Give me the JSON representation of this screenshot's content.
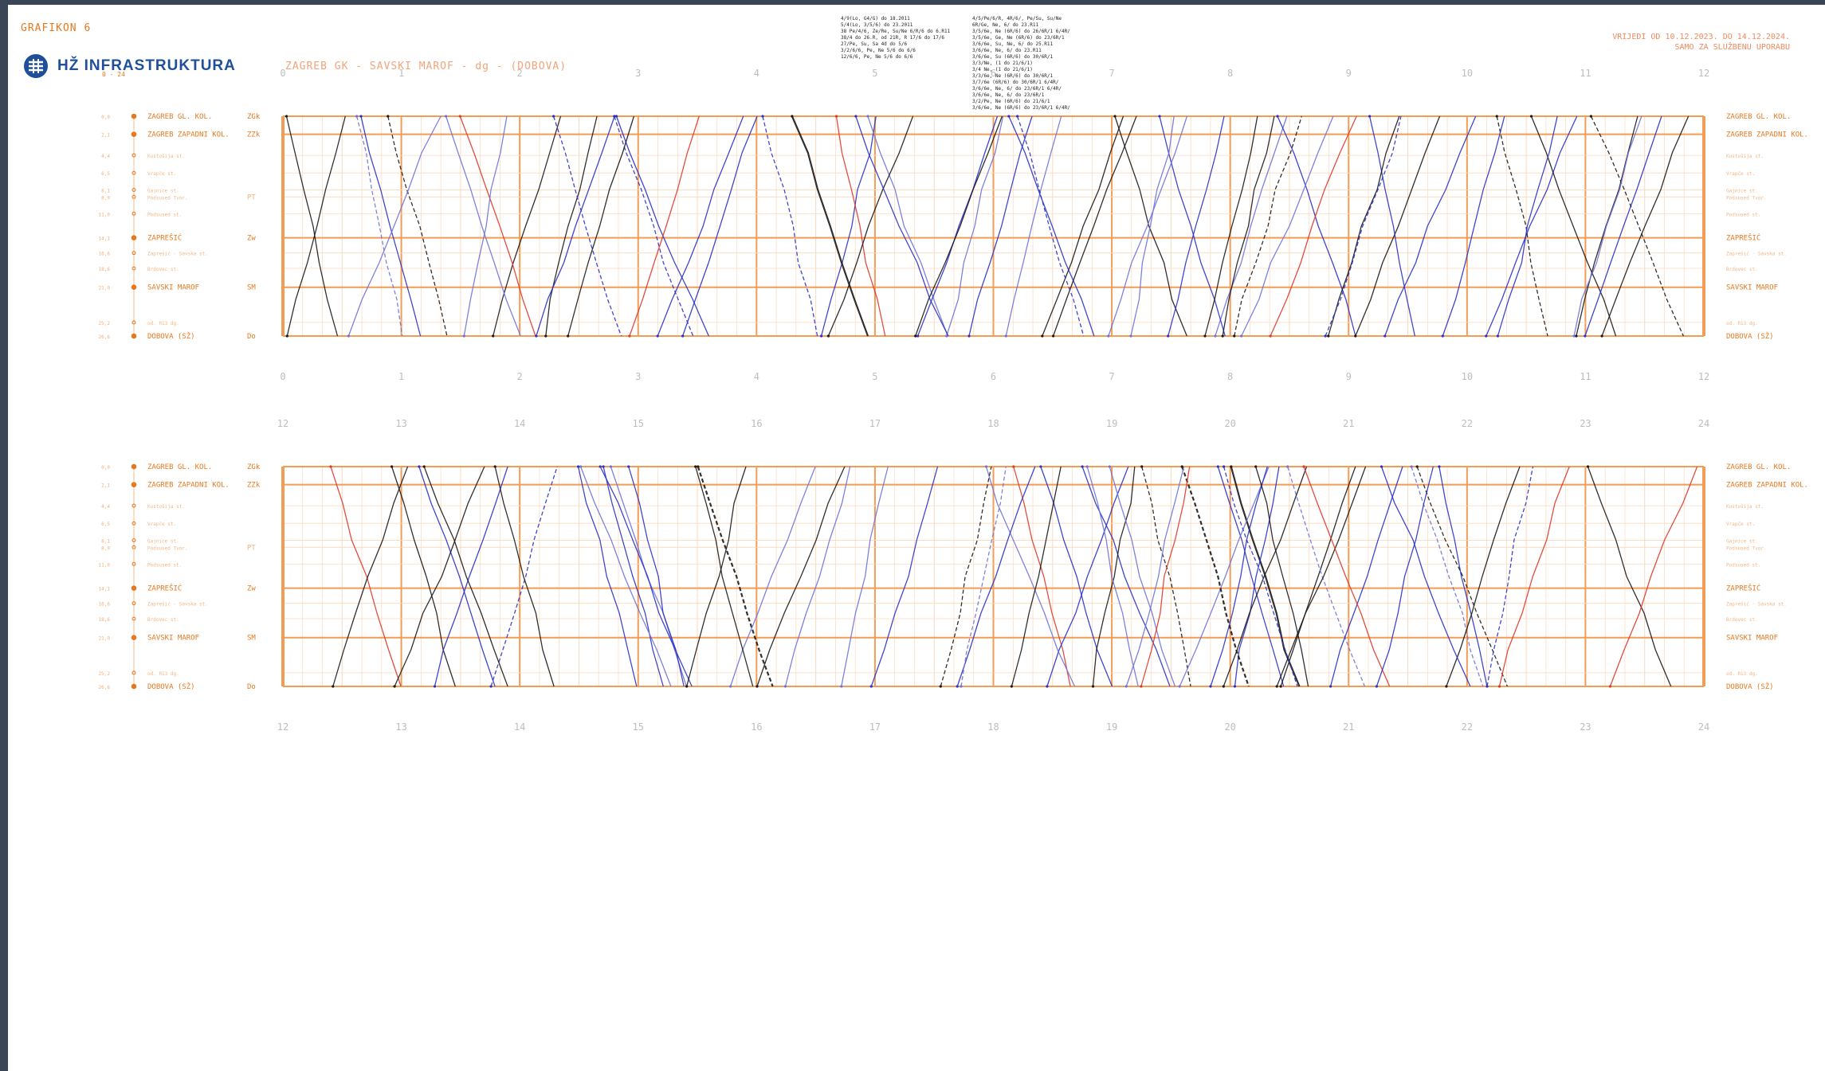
{
  "header": {
    "grafikon": "GRAFIKON 6",
    "operator": "HŽ INFRASTRUKTURA",
    "route": "ZAGREB GK - SAVSKI MAROF - dg - (DOBOVA)",
    "validity_line1": "VRIJEDI OD 10.12.2023. DO 14.12.2024.",
    "validity_line2": "SAMO ZA SLUŽBENU UPORABU"
  },
  "notes_a": [
    "4/9(Lo, G4/G) do 18.2011",
    "5/4(Lo, 3/5/6) do 23.2011",
    "38 Pe/4/6, Ze/Re, Su/Ne 6/R/6 do 6.R11",
    "38/4 do 26.R, od 21R, R 17/6 do 17/6",
    "27/Pe, Su, Sa 4d do 5/6",
    "3/2/6/6, Pe, Ne 5/6 do 6/6",
    "12/6/6, Pe, Ne 5/6 do 6/6"
  ],
  "notes_b": [
    "4/5/Pe/6/R, 4R/6/, Pe/Su, Su/Ne",
    "6R/Ge, Ne, 6/ do 23.R11",
    "3/5/6e, Ne (6R/6) do 26/6R/1 6/4R/",
    "3/5/6e, Ge, Ne (6R/6) do 23/6R/1",
    "3/6/6e, Su, Ne, 6/ do 25.R11",
    "3/6/6e, Ne, 6/ do 23.R11",
    "3/6/6e, Su (6R/6) do 30/6R/1",
    "3/3/Ne, (1 do 21/6/1)",
    "3/4 Ne, (1 do 21/6/1)",
    "3/3/6e, Ne (6R/6) do 30/6R/1",
    "3/7/6e (6R/6) do 30/6R/1 6/4R/",
    "3/6/6e, Ne, 6/ do 23/6R/1 6/4R/",
    "3/6/6e, Ne, 6/ do 23/6R/1",
    "3/2/Pe, Ne (6R/6) do 21/6/1",
    "3/6/6e, Ne (6R/6) do 23/6R/1 6/4R/"
  ],
  "hours": {
    "top": [
      "0",
      "1",
      "2",
      "3",
      "4",
      "5",
      "6",
      "7",
      "8",
      "9",
      "10",
      "11",
      "12"
    ],
    "bottom": [
      "12",
      "13",
      "14",
      "15",
      "16",
      "17",
      "18",
      "19",
      "20",
      "21",
      "22",
      "23",
      "24"
    ]
  },
  "range_label": "0 - 24",
  "stations": [
    {
      "km": "0,0",
      "name": "ZAGREB GL. KOL.",
      "abbr": "ZGk",
      "major": true
    },
    {
      "km": "2,1",
      "name": "ZAGREB ZAPADNI KOL.",
      "abbr": "ZZk",
      "major": true
    },
    {
      "km": "4,4",
      "name": "Kustošija st.",
      "abbr": "",
      "major": false
    },
    {
      "km": "6,5",
      "name": "Vrapče st.",
      "abbr": "",
      "major": false
    },
    {
      "km": "8,1",
      "name": "Gajnice st.",
      "abbr": "",
      "major": false
    },
    {
      "km": "8,9",
      "name": "Podsused Tvor.",
      "abbr": "PT",
      "major": false
    },
    {
      "km": "11,0",
      "name": "Podsused st.",
      "abbr": "",
      "major": false
    },
    {
      "km": "14,1",
      "name": "ZAPREŠIĆ",
      "abbr": "Zw",
      "major": true
    },
    {
      "km": "16,6",
      "name": "Zaprešić - Savska st.",
      "abbr": "",
      "major": false
    },
    {
      "km": "18,6",
      "name": "Brdovec st.",
      "abbr": "",
      "major": false
    },
    {
      "km": "21,0",
      "name": "SAVSKI MAROF",
      "abbr": "SM",
      "major": true
    },
    {
      "km": "25,2",
      "name": "od. R13 dg.",
      "abbr": "",
      "major": false
    },
    {
      "km": "26,6",
      "name": "DOBOVA (SŽ)",
      "abbr": "Do",
      "major": true
    }
  ],
  "colors": {
    "grid": "#f39c55",
    "grid_minor": "#fbd9bc",
    "station_text": "#e8781e",
    "train_black": "#1a1a1a",
    "train_blue": "#2a33c9",
    "train_lightblue": "#6f74d9",
    "train_red": "#e03a2a",
    "brand": "#1f4f9a"
  }
}
